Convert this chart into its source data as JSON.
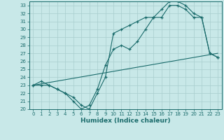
{
  "xlabel": "Humidex (Indice chaleur)",
  "background_color": "#c8e8e8",
  "grid_color": "#a8cece",
  "line_color": "#1a6b6b",
  "xlim": [
    -0.5,
    23.5
  ],
  "ylim": [
    20,
    33.5
  ],
  "yticks": [
    20,
    21,
    22,
    23,
    24,
    25,
    26,
    27,
    28,
    29,
    30,
    31,
    32,
    33
  ],
  "xticks": [
    0,
    1,
    2,
    3,
    4,
    5,
    6,
    7,
    8,
    9,
    10,
    11,
    12,
    13,
    14,
    15,
    16,
    17,
    18,
    19,
    20,
    21,
    22,
    23
  ],
  "line1_x": [
    0,
    1,
    2,
    3,
    4,
    5,
    6,
    7,
    8,
    9,
    10,
    11,
    12,
    13,
    14,
    15,
    16,
    17,
    18,
    19,
    20,
    21,
    22,
    23
  ],
  "line1_y": [
    23,
    23,
    23,
    22.5,
    22,
    21,
    20,
    20.5,
    22.5,
    25.5,
    27.5,
    28,
    27.5,
    28.5,
    30,
    31.5,
    31.5,
    33.0,
    33.0,
    32.5,
    31.5,
    31.5,
    27,
    26.5
  ],
  "line2_x": [
    0,
    1,
    2,
    3,
    4,
    5,
    6,
    7,
    8,
    9,
    10,
    11,
    12,
    13,
    14,
    15,
    16,
    17,
    18,
    19,
    20,
    21,
    22,
    23
  ],
  "line2_y": [
    23,
    23.5,
    23,
    22.5,
    22,
    21.5,
    20.5,
    20.0,
    22.0,
    24.0,
    29.5,
    30.0,
    30.5,
    31.0,
    31.5,
    31.5,
    32.5,
    33.5,
    33.5,
    33.0,
    32.0,
    31.5,
    27.0,
    26.5
  ],
  "line3_x": [
    0,
    23
  ],
  "line3_y": [
    23,
    27
  ]
}
